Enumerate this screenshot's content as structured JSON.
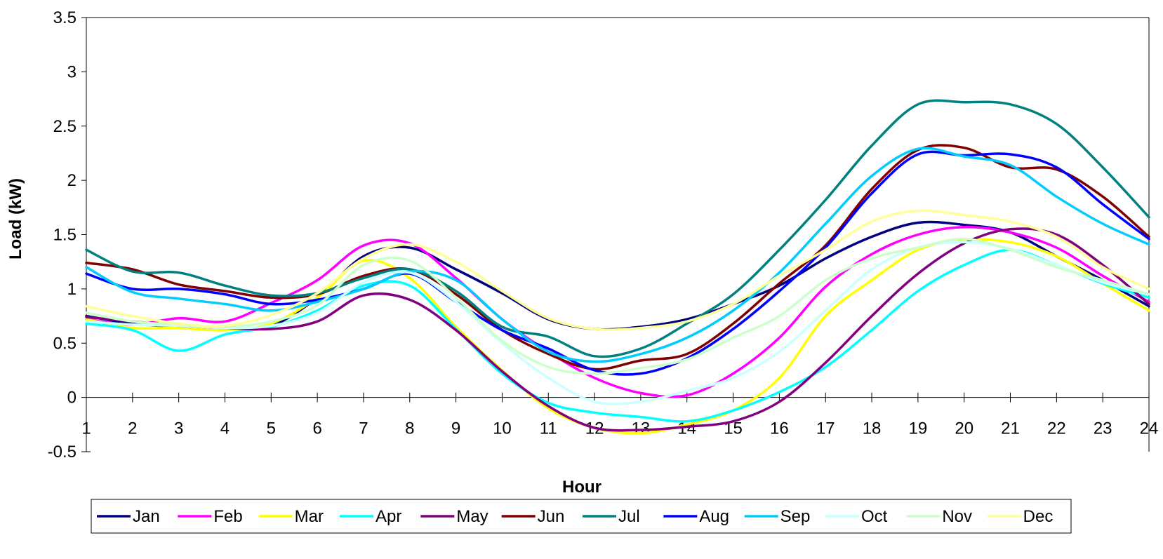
{
  "chart_data": {
    "type": "line",
    "xlabel": "Hour",
    "ylabel": "Load (kW)",
    "xlim": [
      1,
      24
    ],
    "ylim": [
      -0.5,
      3.5
    ],
    "x_ticks": [
      "1",
      "2",
      "3",
      "4",
      "5",
      "6",
      "7",
      "8",
      "9",
      "10",
      "11",
      "12",
      "13",
      "14",
      "15",
      "16",
      "17",
      "18",
      "19",
      "20",
      "21",
      "22",
      "23",
      "24"
    ],
    "y_ticks": [
      "3.5",
      "3",
      "2.5",
      "2",
      "1.5",
      "1",
      "0.5",
      "0",
      "-0.5"
    ],
    "grid": false,
    "legend_position": "bottom",
    "x": [
      1,
      2,
      3,
      4,
      5,
      6,
      7,
      8,
      9,
      10,
      11,
      12,
      13,
      14,
      15,
      16,
      17,
      18,
      19,
      20,
      21,
      22,
      23,
      24
    ],
    "series": [
      {
        "name": "Jan",
        "color": "#000080",
        "values": [
          0.75,
          0.68,
          0.65,
          0.64,
          0.66,
          0.92,
          1.3,
          1.38,
          1.18,
          0.96,
          0.72,
          0.63,
          0.65,
          0.72,
          0.86,
          1.03,
          1.28,
          1.48,
          1.61,
          1.59,
          1.52,
          1.3,
          1.08,
          0.84
        ]
      },
      {
        "name": "Feb",
        "color": "#FF00FF",
        "values": [
          0.72,
          0.67,
          0.73,
          0.7,
          0.87,
          1.08,
          1.4,
          1.42,
          1.1,
          0.72,
          0.42,
          0.18,
          0.04,
          0.02,
          0.22,
          0.55,
          1.02,
          1.32,
          1.5,
          1.57,
          1.52,
          1.38,
          1.12,
          0.88
        ]
      },
      {
        "name": "Mar",
        "color": "#FFFF00",
        "values": [
          0.72,
          0.64,
          0.64,
          0.62,
          0.68,
          0.92,
          1.26,
          1.1,
          0.65,
          0.25,
          -0.1,
          -0.28,
          -0.33,
          -0.25,
          -0.12,
          0.18,
          0.75,
          1.08,
          1.36,
          1.45,
          1.43,
          1.3,
          1.05,
          0.8
        ]
      },
      {
        "name": "Apr",
        "color": "#00FFFF",
        "values": [
          0.68,
          0.62,
          0.43,
          0.58,
          0.65,
          0.8,
          1.03,
          1.03,
          0.63,
          0.22,
          -0.05,
          -0.14,
          -0.18,
          -0.22,
          -0.12,
          0.05,
          0.28,
          0.62,
          0.98,
          1.22,
          1.36,
          1.22,
          1.05,
          0.92
        ]
      },
      {
        "name": "May",
        "color": "#800080",
        "values": [
          0.74,
          0.7,
          0.66,
          0.64,
          0.63,
          0.7,
          0.94,
          0.9,
          0.62,
          0.24,
          -0.08,
          -0.28,
          -0.3,
          -0.27,
          -0.22,
          -0.04,
          0.32,
          0.75,
          1.14,
          1.42,
          1.55,
          1.5,
          1.22,
          0.86
        ]
      },
      {
        "name": "Jun",
        "color": "#800000",
        "values": [
          1.24,
          1.18,
          1.04,
          0.98,
          0.92,
          0.95,
          1.12,
          1.18,
          0.95,
          0.62,
          0.4,
          0.26,
          0.34,
          0.4,
          0.68,
          1.05,
          1.4,
          1.92,
          2.28,
          2.3,
          2.12,
          2.1,
          1.85,
          1.48
        ]
      },
      {
        "name": "Jul",
        "color": "#008080",
        "values": [
          1.36,
          1.16,
          1.15,
          1.03,
          0.94,
          0.96,
          1.1,
          1.18,
          0.98,
          0.65,
          0.56,
          0.38,
          0.45,
          0.68,
          0.95,
          1.36,
          1.82,
          2.32,
          2.7,
          2.72,
          2.7,
          2.52,
          2.12,
          1.66
        ]
      },
      {
        "name": "Aug",
        "color": "#0000FF",
        "values": [
          1.14,
          1.0,
          1.0,
          0.95,
          0.86,
          0.9,
          1.0,
          1.14,
          0.88,
          0.62,
          0.45,
          0.25,
          0.22,
          0.36,
          0.63,
          0.98,
          1.38,
          1.88,
          2.24,
          2.23,
          2.24,
          2.12,
          1.78,
          1.46
        ]
      },
      {
        "name": "Sep",
        "color": "#00CCFF",
        "values": [
          1.2,
          0.97,
          0.91,
          0.86,
          0.8,
          0.88,
          1.0,
          1.16,
          1.08,
          0.72,
          0.42,
          0.33,
          0.4,
          0.55,
          0.8,
          1.15,
          1.6,
          2.04,
          2.29,
          2.22,
          2.14,
          1.85,
          1.6,
          1.41
        ]
      },
      {
        "name": "Oct",
        "color": "#CCFFFF",
        "values": [
          0.7,
          0.67,
          0.66,
          0.64,
          0.66,
          0.78,
          1.06,
          1.15,
          0.88,
          0.5,
          0.18,
          -0.04,
          -0.04,
          0.06,
          0.18,
          0.42,
          0.8,
          1.18,
          1.38,
          1.43,
          1.37,
          1.22,
          1.06,
          0.95
        ]
      },
      {
        "name": "Nov",
        "color": "#CCFFCC",
        "values": [
          0.78,
          0.7,
          0.67,
          0.65,
          0.7,
          0.85,
          1.22,
          1.26,
          0.92,
          0.52,
          0.28,
          0.22,
          0.27,
          0.35,
          0.55,
          0.75,
          1.08,
          1.28,
          1.38,
          1.46,
          1.36,
          1.2,
          1.08,
          0.95
        ]
      },
      {
        "name": "Dec",
        "color": "#FFFF99",
        "values": [
          0.84,
          0.75,
          0.68,
          0.66,
          0.76,
          0.96,
          1.28,
          1.41,
          1.25,
          0.98,
          0.73,
          0.63,
          0.64,
          0.7,
          0.86,
          1.12,
          1.36,
          1.62,
          1.72,
          1.68,
          1.62,
          1.48,
          1.2,
          1.0
        ]
      }
    ]
  }
}
